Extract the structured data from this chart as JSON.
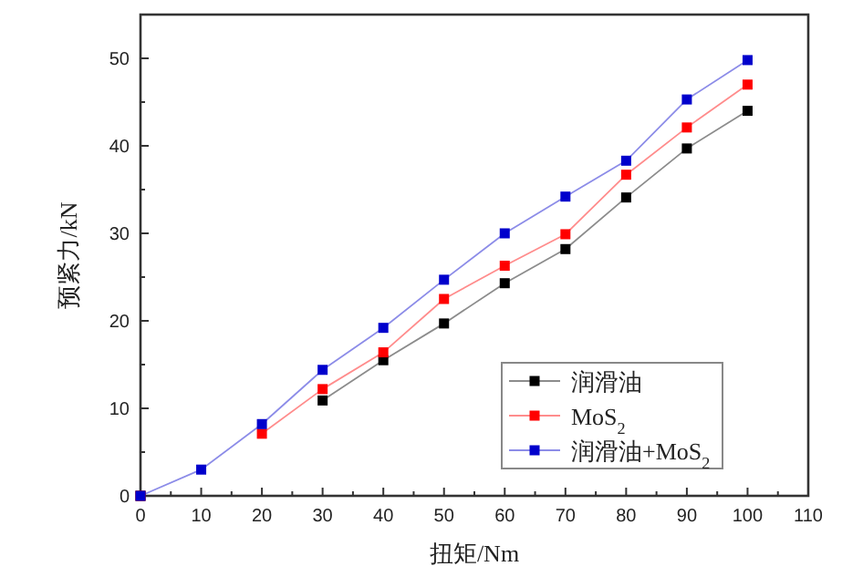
{
  "chart_data": {
    "type": "line",
    "xlabel": "扭矩/Nm",
    "ylabel": "预紧力/kN",
    "x": [
      0,
      10,
      20,
      30,
      40,
      50,
      60,
      70,
      80,
      90,
      100
    ],
    "series": [
      {
        "name": "润滑油",
        "color": "#000000",
        "values": [
          0,
          null,
          null,
          10.9,
          15.5,
          19.7,
          24.3,
          28.2,
          34.1,
          39.7,
          44.0
        ]
      },
      {
        "name": "MoS$_{2}$",
        "color": "#ff0000",
        "values": [
          0,
          null,
          7.1,
          12.2,
          16.4,
          22.5,
          26.3,
          29.9,
          36.7,
          42.1,
          47.0
        ]
      },
      {
        "name": "润滑油+MoS$_{2}$",
        "color": "#0000cc",
        "values": [
          0,
          3.0,
          8.2,
          14.4,
          19.2,
          24.7,
          30.0,
          34.2,
          38.3,
          45.3,
          49.8
        ]
      }
    ],
    "xlim": [
      0,
      110
    ],
    "ylim": [
      0,
      55
    ],
    "xticks": [
      0,
      {
        "value": 5,
        "label": null
      },
      10,
      {
        "value": 15,
        "label": null
      },
      20,
      {
        "value": 25,
        "label": null
      },
      30,
      {
        "value": 35,
        "label": null
      },
      40,
      {
        "value": 45,
        "label": null
      },
      50,
      {
        "value": 55,
        "label": null
      },
      60,
      {
        "value": 65,
        "label": null
      },
      70,
      {
        "value": 75,
        "label": null
      },
      80,
      {
        "value": 85,
        "label": null
      },
      90,
      {
        "value": 95,
        "label": null
      },
      100,
      {
        "value": 105,
        "label": null
      },
      110
    ],
    "yticks": [
      0,
      {
        "value": 5,
        "label": null
      },
      10,
      {
        "value": 15,
        "label": null
      },
      20,
      {
        "value": 25,
        "label": null
      },
      30,
      {
        "value": 35,
        "label": null
      },
      40,
      {
        "value": 45,
        "label": null
      },
      50
    ],
    "marker": "square",
    "line_style": "solid",
    "grid": false,
    "legend": "bottom right"
  }
}
